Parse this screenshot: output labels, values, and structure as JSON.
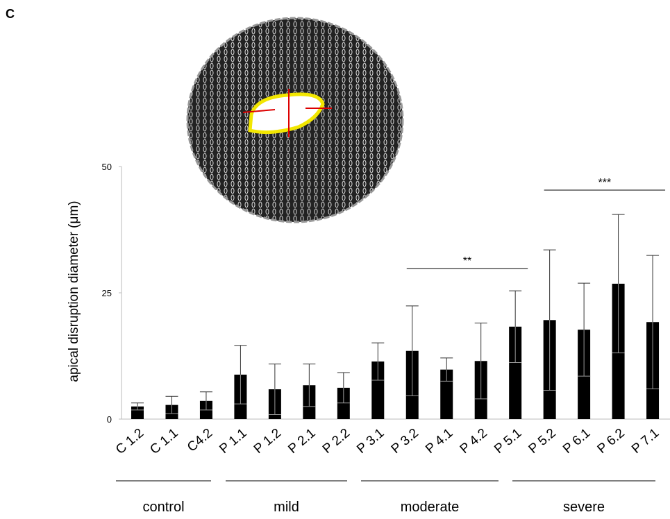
{
  "panel_label": "C",
  "chart_data": {
    "type": "bar",
    "y_label": "apical disruption diameter (μm)",
    "categories": [
      "C 1.2",
      "C 1.1",
      "C4.2",
      "P 1.1",
      "P 1.2",
      "P 2.1",
      "P 2.2",
      "P 3.1",
      "P 3.2",
      "P 4.1",
      "P 4.2",
      "P 5.1",
      "P 5.2",
      "P 6.1",
      "P 6.2",
      "P 7.1"
    ],
    "values": [
      2.5,
      2.8,
      3.6,
      8.8,
      5.9,
      6.7,
      6.2,
      11.4,
      13.5,
      9.8,
      11.5,
      18.3,
      19.6,
      17.7,
      26.8,
      19.2
    ],
    "errors": [
      0.7,
      1.7,
      1.8,
      5.8,
      5.0,
      4.2,
      3.0,
      3.7,
      8.9,
      2.3,
      7.5,
      7.1,
      13.9,
      9.2,
      13.7,
      13.2
    ],
    "color": "#000000",
    "ylim": [
      0,
      50
    ],
    "yticks": [
      0,
      25,
      50
    ],
    "significance": [
      "**",
      "***"
    ],
    "groups": [
      "control",
      "mild",
      "moderate",
      "severe"
    ]
  }
}
